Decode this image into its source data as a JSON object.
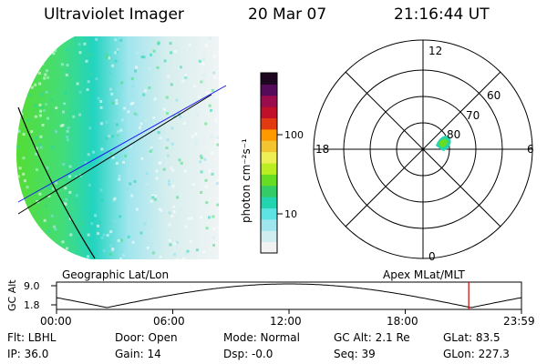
{
  "header": {
    "instrument": "Ultraviolet Imager",
    "date": "20 Mar 07",
    "time": "21:16:44 UT"
  },
  "colorbar": {
    "unit_label": "photon cm⁻²s⁻¹",
    "tick_labels": [
      "100",
      "10"
    ],
    "scale": "log",
    "colors": [
      "#f2f2f2",
      "#d0eef0",
      "#9fe5ee",
      "#5de3e3",
      "#22d4b0",
      "#33cc66",
      "#66dd22",
      "#bbee22",
      "#eeee55",
      "#f4c430",
      "#ff9900",
      "#e23a10",
      "#c0102a",
      "#9a0c4c",
      "#560a5a",
      "#1c0620"
    ]
  },
  "polar_plot": {
    "mlt_labels": {
      "top": "12",
      "right": "6",
      "bottom": "0",
      "left": "18"
    },
    "lat_labels": [
      "60",
      "70",
      "80"
    ]
  },
  "timeline": {
    "left_label": "Geographic Lat/Lon",
    "right_label": "Apex MLat/MLT",
    "y_axis_label": "GC Alt",
    "y_ticks": [
      "9.0",
      "1.8"
    ],
    "x_ticks": [
      "00:00",
      "06:00",
      "12:00",
      "18:00",
      "23:59"
    ],
    "marker_color": "#cc0000",
    "marker_time": "21:16:44"
  },
  "info": {
    "filter": "Flt: LBHL",
    "ip": "IP: 36.0",
    "door": "Door: Open",
    "gain": "Gain: 14",
    "mode": "Mode: Normal",
    "dsp": "Dsp:    -0.0",
    "gc_alt": "GC Alt: 2.1 Re",
    "seq": "Seq: 39",
    "glat": "GLat:  83.5",
    "glon": "GLon: 227.3"
  }
}
